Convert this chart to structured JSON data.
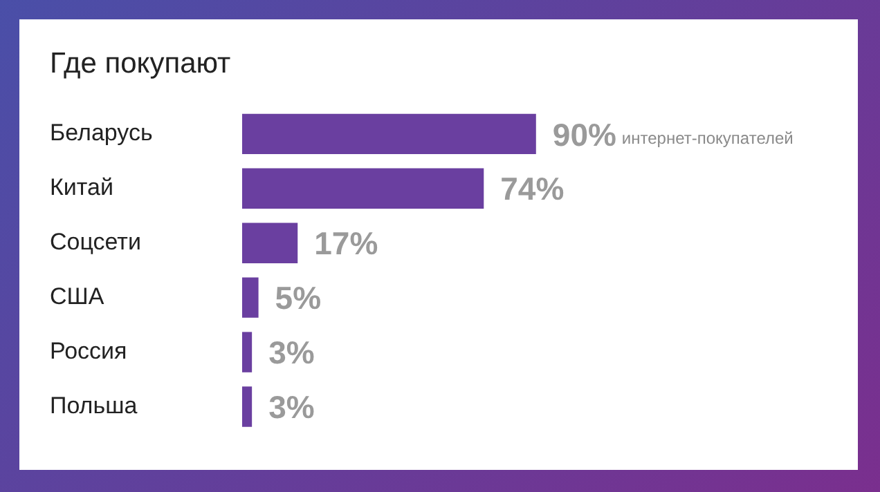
{
  "chart_data": {
    "type": "bar",
    "orientation": "horizontal",
    "title": "Где покупают",
    "categories": [
      "Беларусь",
      "Китай",
      "Соцсети",
      "США",
      "Россия",
      "Польша"
    ],
    "values": [
      90,
      74,
      17,
      5,
      3,
      3
    ],
    "color": "#6a3fa0",
    "value_labels": [
      "90%",
      "74%",
      "17%",
      "5%",
      "3%",
      "3%"
    ],
    "annotations": [
      "интернет-покупателей"
    ],
    "legend": false
  }
}
